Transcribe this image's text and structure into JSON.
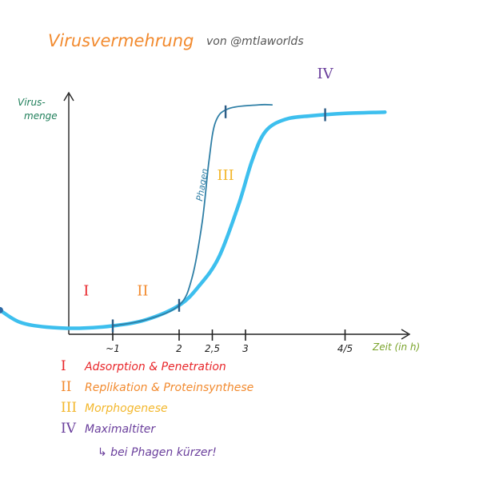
{
  "title": "Virusvermehrung",
  "author": "von @mtlaworlds",
  "y_axis_label": [
    "Virus-",
    "menge"
  ],
  "x_axis_label": "Zeit (in h)",
  "phage_label": "Phagen",
  "colors": {
    "main_curve": "#3dbfee",
    "phage_curve": "#2f7fa6",
    "phase_I": "#e8262a",
    "phase_II": "#f28a2e",
    "phase_III": "#f3b72c",
    "phase_IV": "#6a3f9c",
    "axis": "#222222"
  },
  "chart_data": {
    "type": "line",
    "xlabel": "Zeit (in h)",
    "ylabel": "Virusmenge",
    "x_ticks": [
      "~1",
      "2",
      "2,5",
      "3",
      "4/5"
    ],
    "x_tick_values": [
      1,
      2,
      2.5,
      3,
      4.5
    ],
    "xlim": [
      -0.7,
      5.3
    ],
    "ylim": [
      0,
      10
    ],
    "series": [
      {
        "name": "",
        "style": "thick",
        "points": [
          [
            -0.7,
            0.8
          ],
          [
            -0.4,
            0.3
          ],
          [
            0,
            0.1
          ],
          [
            0.5,
            0.05
          ],
          [
            1,
            0.15
          ],
          [
            1.5,
            0.4
          ],
          [
            2,
            1.0
          ],
          [
            2.3,
            1.8
          ],
          [
            2.6,
            3.0
          ],
          [
            2.9,
            5.2
          ],
          [
            3.1,
            7.0
          ],
          [
            3.3,
            8.2
          ],
          [
            3.6,
            8.7
          ],
          [
            4,
            8.85
          ],
          [
            4.5,
            8.95
          ],
          [
            5.1,
            9.0
          ]
        ]
      },
      {
        "name": "Phagen",
        "style": "thin",
        "points": [
          [
            1,
            0.15
          ],
          [
            1.5,
            0.4
          ],
          [
            2,
            1.0
          ],
          [
            2.2,
            2.2
          ],
          [
            2.35,
            4.5
          ],
          [
            2.45,
            7.0
          ],
          [
            2.55,
            8.6
          ],
          [
            2.75,
            9.15
          ],
          [
            3.2,
            9.3
          ],
          [
            3.4,
            9.3
          ]
        ]
      }
    ],
    "phase_markers": [
      {
        "series": 0,
        "x": 1.0
      },
      {
        "series": 0,
        "x": 2.0
      },
      {
        "series": 0,
        "x": 4.2
      },
      {
        "series": 1,
        "x": 2.7
      }
    ],
    "phases": [
      {
        "id": "I",
        "color": "#e8262a",
        "x": 0.6,
        "y": 1.4
      },
      {
        "id": "II",
        "color": "#f28a2e",
        "x": 1.45,
        "y": 1.4
      },
      {
        "id": "III",
        "color": "#f3b72c",
        "x": 2.7,
        "y": 6.2
      },
      {
        "id": "IV",
        "color": "#6a3f9c",
        "x": 4.2,
        "y": 10.4
      }
    ]
  },
  "legend": [
    {
      "numeral": "I",
      "text": "Adsorption & Penetration",
      "color": "#e8262a"
    },
    {
      "numeral": "II",
      "text": "Replikation & Proteinsynthese",
      "color": "#f28a2e"
    },
    {
      "numeral": "III",
      "text": "Morphogenese",
      "color": "#f3b72c"
    },
    {
      "numeral": "IV",
      "text": "Maximaltiter",
      "color": "#6a3f9c"
    }
  ],
  "note": "↳ bei Phagen kürzer!"
}
